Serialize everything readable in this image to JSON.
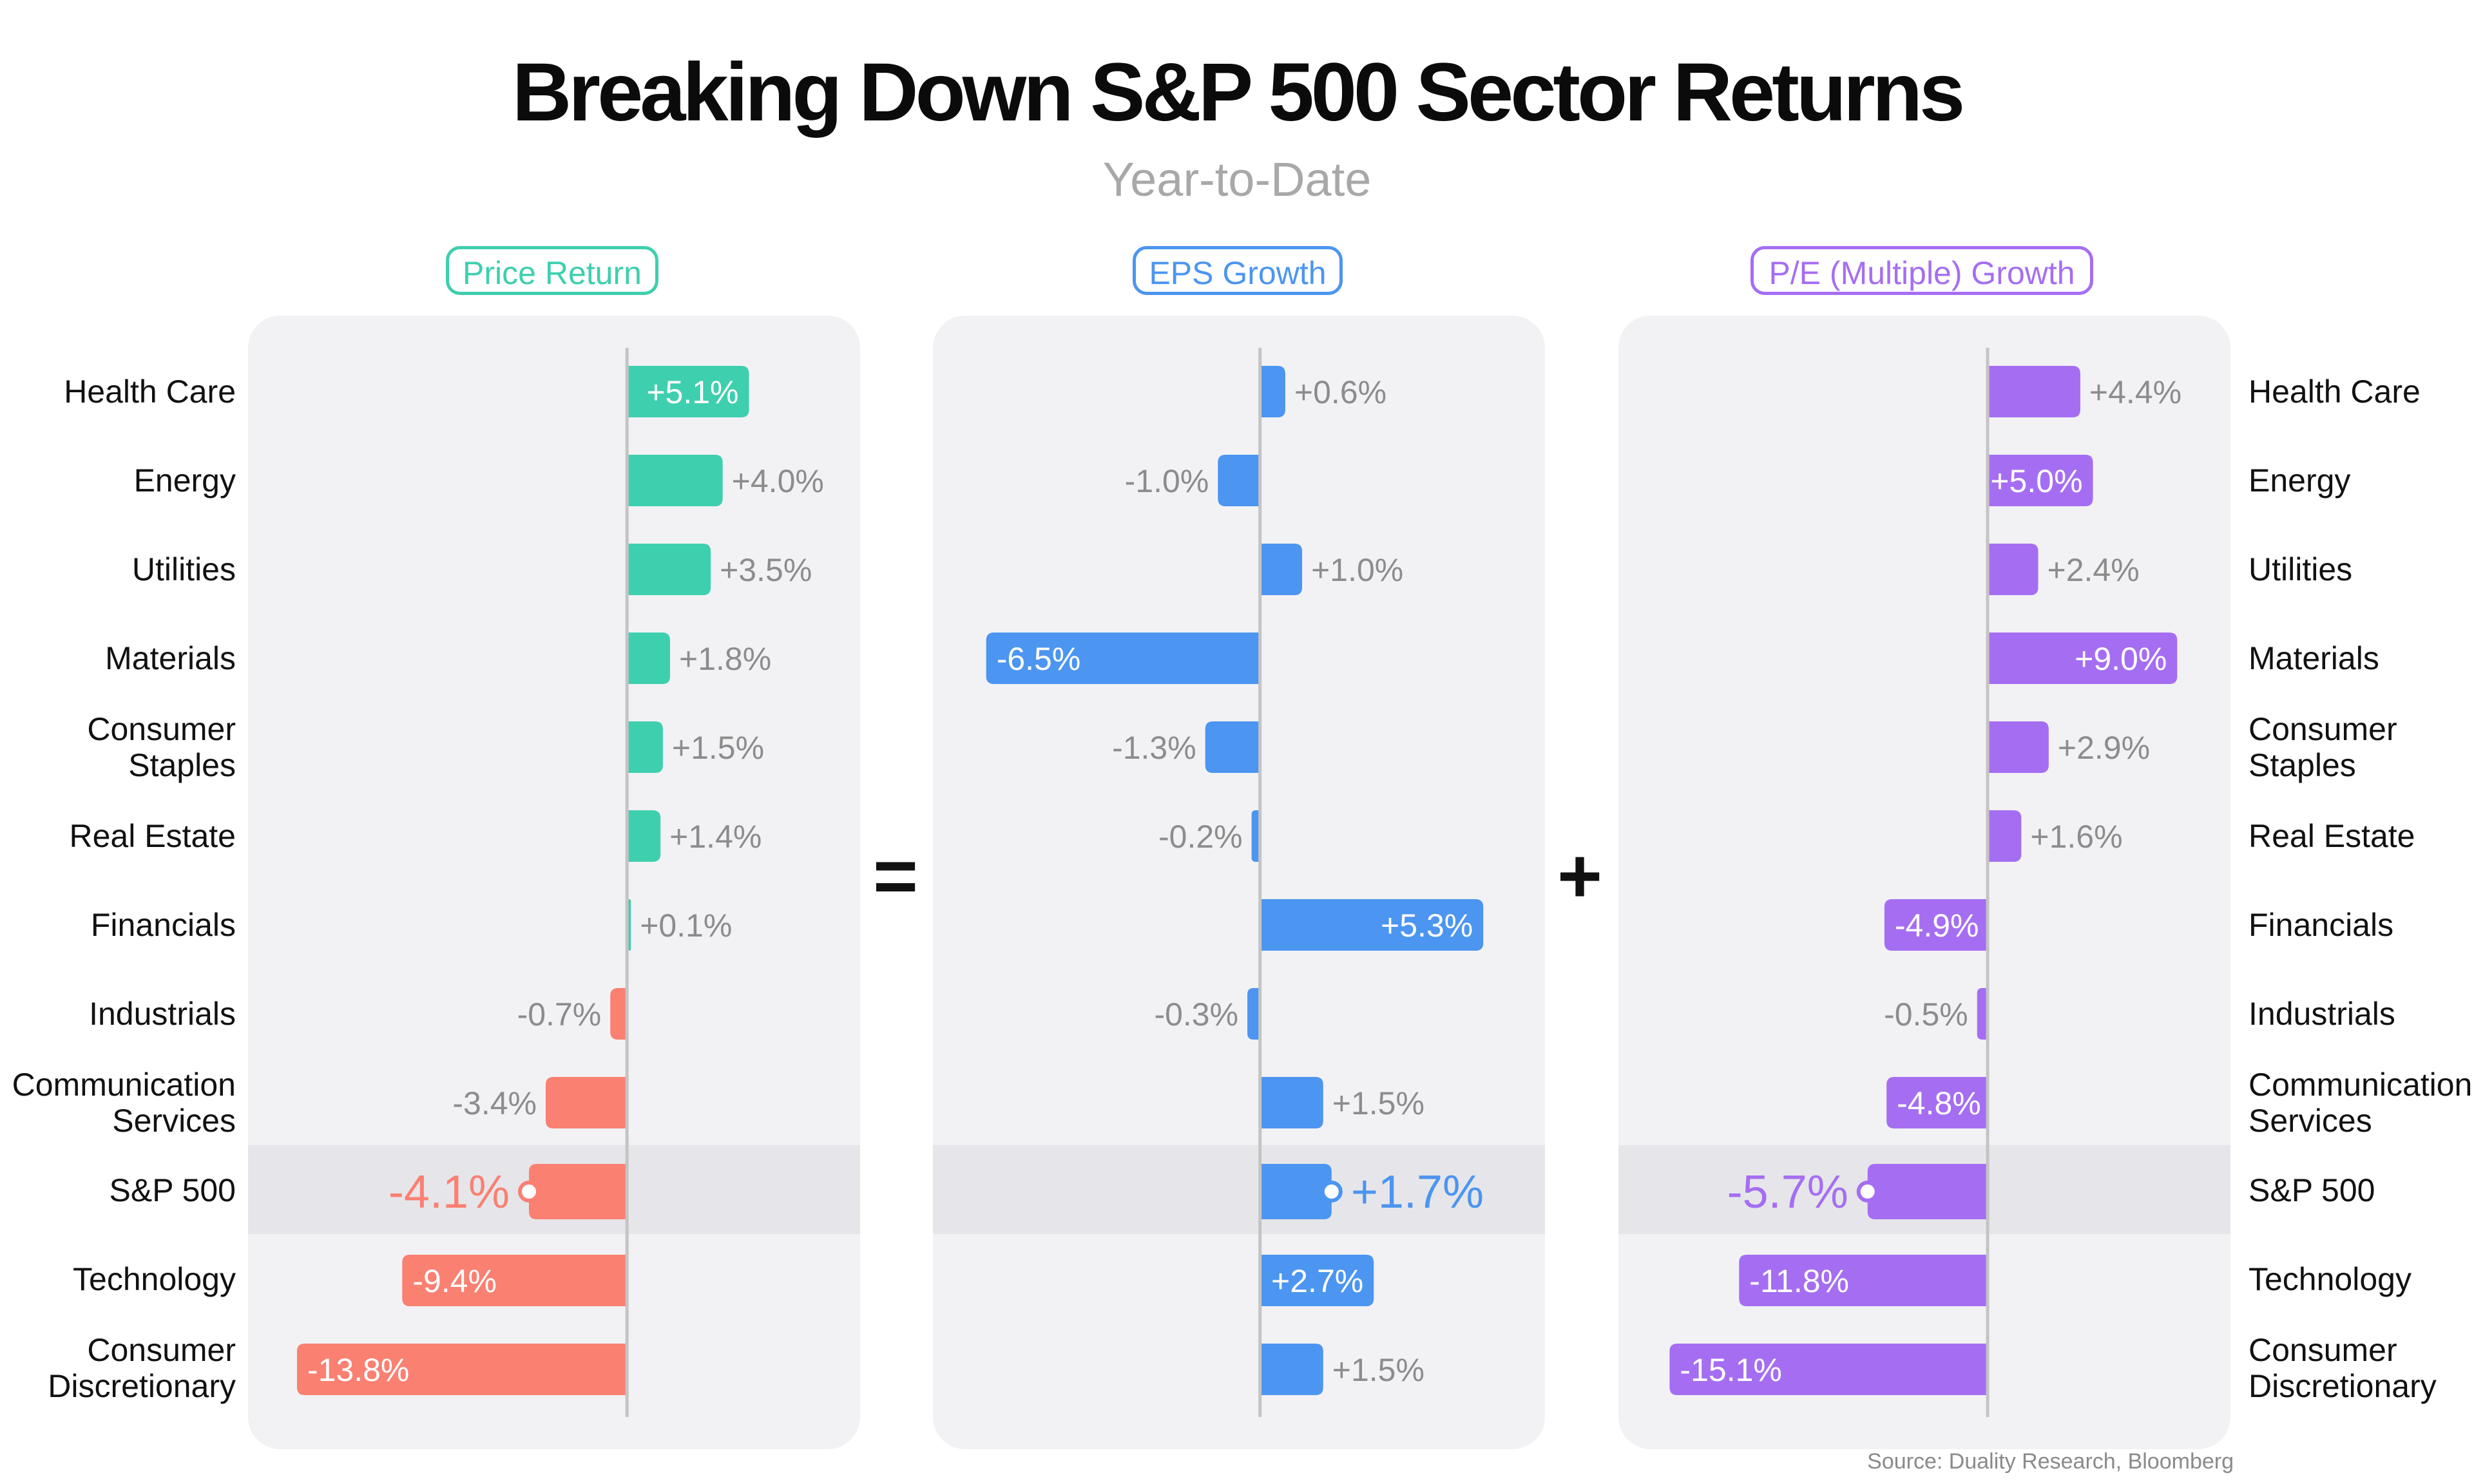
{
  "title": "Breaking Down S&P 500 Sector Returns",
  "subtitle": "Year-to-Date",
  "source": "Source: Duality Research, Bloomberg",
  "operators": {
    "equals": "=",
    "plus": "+"
  },
  "highlight_row": "S&P 500",
  "row_labels": [
    "Health Care",
    "Energy",
    "Utilities",
    "Materials",
    "Consumer Staples",
    "Real Estate",
    "Financials",
    "Industrials",
    "Communication Services",
    "S&P 500",
    "Technology",
    "Consumer Discretionary"
  ],
  "chart_data": [
    {
      "type": "bar",
      "title": "Price Return",
      "color": "#3ecfae",
      "negative_color": "#fa8072",
      "categories": [
        "Health Care",
        "Energy",
        "Utilities",
        "Materials",
        "Consumer Staples",
        "Real Estate",
        "Financials",
        "Industrials",
        "Communication Services",
        "S&P 500",
        "Technology",
        "Consumer Discretionary"
      ],
      "values": [
        5.1,
        4.0,
        3.5,
        1.8,
        1.5,
        1.4,
        0.1,
        -0.7,
        -3.4,
        -4.1,
        -9.4,
        -13.8
      ],
      "labels": [
        "+5.1%",
        "+4.0%",
        "+3.5%",
        "+1.8%",
        "+1.5%",
        "+1.4%",
        "+0.1%",
        "-0.7%",
        "-3.4%",
        "-4.1%",
        "-9.4%",
        "-13.8%"
      ],
      "label_inside": [
        true,
        false,
        false,
        false,
        false,
        false,
        false,
        false,
        false,
        false,
        true,
        true
      ],
      "xlim": [
        -14.5,
        8.4
      ]
    },
    {
      "type": "bar",
      "title": "EPS Growth",
      "color": "#4c95f0",
      "negative_color": "#4c95f0",
      "categories": [
        "Health Care",
        "Energy",
        "Utilities",
        "Materials",
        "Consumer Staples",
        "Real Estate",
        "Financials",
        "Industrials",
        "Communication Services",
        "S&P 500",
        "Technology",
        "Consumer Discretionary"
      ],
      "values": [
        0.6,
        -1.0,
        1.0,
        -6.5,
        -1.3,
        -0.2,
        5.3,
        -0.3,
        1.5,
        1.7,
        2.7,
        1.5
      ],
      "labels": [
        "+0.6%",
        "-1.0%",
        "+1.0%",
        "-6.5%",
        "-1.3%",
        "-0.2%",
        "+5.3%",
        "-0.3%",
        "+1.5%",
        "+1.7%",
        "+2.7%",
        "+1.5%"
      ],
      "label_inside": [
        false,
        false,
        false,
        true,
        false,
        false,
        true,
        false,
        false,
        false,
        true,
        false
      ],
      "xlim": [
        -7.0,
        6.0
      ]
    },
    {
      "type": "bar",
      "title": "P/E (Multiple) Growth",
      "color": "#a56ef2",
      "negative_color": "#a56ef2",
      "categories": [
        "Health Care",
        "Energy",
        "Utilities",
        "Materials",
        "Consumer Staples",
        "Real Estate",
        "Financials",
        "Industrials",
        "Communication Services",
        "S&P 500",
        "Technology",
        "Consumer Discretionary"
      ],
      "values": [
        4.4,
        5.0,
        2.4,
        9.0,
        2.9,
        1.6,
        -4.9,
        -0.5,
        -4.8,
        -5.7,
        -11.8,
        -15.1
      ],
      "labels": [
        "+4.4%",
        "+5.0%",
        "+2.4%",
        "+9.0%",
        "+2.9%",
        "+1.6%",
        "-4.9%",
        "-0.5%",
        "-4.8%",
        "-5.7%",
        "-11.8%",
        "-15.1%"
      ],
      "label_inside": [
        false,
        true,
        false,
        true,
        false,
        false,
        true,
        false,
        true,
        false,
        true,
        true
      ],
      "xlim": [
        -16.0,
        10.0
      ]
    }
  ]
}
